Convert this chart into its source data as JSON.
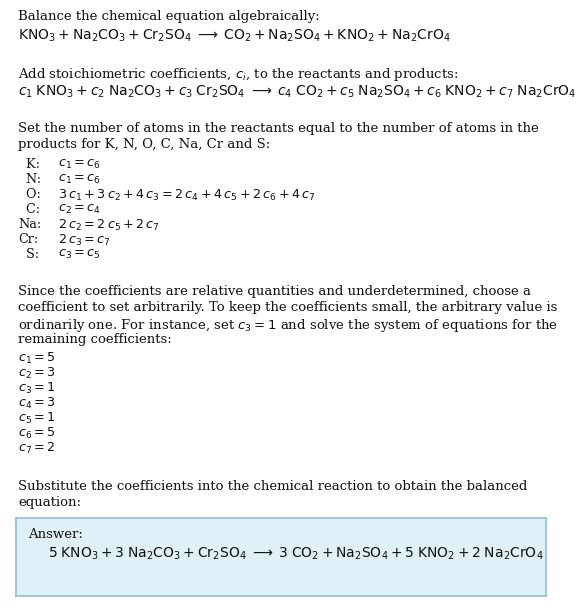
{
  "bg_color": "#ffffff",
  "text_color": "#111111",
  "title1": "Balance the chemical equation algebraically:",
  "eq1": "$\\mathrm{KNO_3 + Na_2CO_3 + Cr_2SO_4 \\;\\longrightarrow\\; CO_2 + Na_2SO_4 + KNO_2 + Na_2CrO_4}$",
  "title2": "Add stoichiometric coefficients, $c_i$, to the reactants and products:",
  "eq2": "$c_1\\;\\mathrm{KNO_3} + c_2\\;\\mathrm{Na_2CO_3} + c_3\\;\\mathrm{Cr_2SO_4} \\;\\longrightarrow\\; c_4\\;\\mathrm{CO_2} + c_5\\;\\mathrm{Na_2SO_4} + c_6\\;\\mathrm{KNO_2} + c_7\\;\\mathrm{Na_2CrO_4}$",
  "title3a": "Set the number of atoms in the reactants equal to the number of atoms in the",
  "title3b": "products for K, N, O, C, Na, Cr and S:",
  "equations": [
    [
      "  K:",
      "$c_1 = c_6$"
    ],
    [
      "  N:",
      "$c_1 = c_6$"
    ],
    [
      "  O:",
      "$3\\,c_1 + 3\\,c_2 + 4\\,c_3 = 2\\,c_4 + 4\\,c_5 + 2\\,c_6 + 4\\,c_7$"
    ],
    [
      "  C:",
      "$c_2 = c_4$"
    ],
    [
      "Na:",
      "$2\\,c_2 = 2\\,c_5 + 2\\,c_7$"
    ],
    [
      "Cr:",
      "$2\\,c_3 = c_7$"
    ],
    [
      "  S:",
      "$c_3 = c_5$"
    ]
  ],
  "title4a": "Since the coefficients are relative quantities and underdetermined, choose a",
  "title4b": "coefficient to set arbitrarily. To keep the coefficients small, the arbitrary value is",
  "title4c": "ordinarily one. For instance, set $c_3 = 1$ and solve the system of equations for the",
  "title4d": "remaining coefficients:",
  "coefficients": [
    "$c_1 = 5$",
    "$c_2 = 3$",
    "$c_3 = 1$",
    "$c_4 = 3$",
    "$c_5 = 1$",
    "$c_6 = 5$",
    "$c_7 = 2$"
  ],
  "title5a": "Substitute the coefficients into the chemical reaction to obtain the balanced",
  "title5b": "equation:",
  "answer_label": "Answer:",
  "answer_eq": "$5\\;\\mathrm{KNO_3} + 3\\;\\mathrm{Na_2CO_3} + \\mathrm{Cr_2SO_4} \\;\\longrightarrow\\; 3\\;\\mathrm{CO_2} + \\mathrm{Na_2SO_4} + 5\\;\\mathrm{KNO_2} + 2\\;\\mathrm{Na_2CrO_4}$",
  "answer_box_facecolor": "#dff0f7",
  "answer_box_edgecolor": "#90bfd4",
  "line_color": "#aaaaaa",
  "fs_body": 9.5,
  "fs_eq": 10.0,
  "fs_small": 9.2
}
